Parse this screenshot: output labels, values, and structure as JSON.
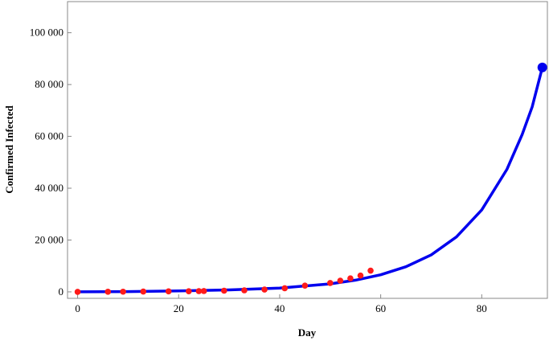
{
  "chart_data": {
    "type": "line",
    "title": "",
    "xlabel": "Day",
    "ylabel": "Confirmed Infected",
    "xlim": [
      -2,
      93
    ],
    "ylim": [
      -2500,
      112000
    ],
    "x_ticks": [
      0,
      20,
      40,
      60,
      80
    ],
    "x_tick_labels": [
      "0",
      "20",
      "40",
      "60",
      "80"
    ],
    "y_ticks": [
      0,
      20000,
      40000,
      60000,
      80000,
      100000
    ],
    "y_tick_labels": [
      "0",
      "20 000",
      "40 000",
      "60 000",
      "80 000",
      "100 000"
    ],
    "grid": false,
    "legend": "none",
    "colors": {
      "curve": "#0000ee",
      "observed": "#ff1a1a",
      "endpoint": "#0000ee",
      "frame": "#888888"
    },
    "series": [
      {
        "kind": "fitted-curve",
        "model": "exponential",
        "x": [
          0,
          10,
          20,
          30,
          40,
          50,
          55,
          60,
          65,
          70,
          75,
          80,
          85,
          88,
          90,
          92
        ],
        "y": [
          0,
          100,
          350,
          750,
          1450,
          3100,
          4500,
          6600,
          9700,
          14300,
          21200,
          31600,
          47300,
          60700,
          71400,
          86600
        ]
      },
      {
        "kind": "observed-points",
        "x": [
          0,
          6,
          9,
          13,
          18,
          22,
          24,
          25,
          29,
          33,
          37,
          41,
          45,
          50,
          52,
          54,
          56,
          58
        ],
        "y": [
          0,
          30,
          60,
          110,
          190,
          240,
          290,
          330,
          450,
          600,
          900,
          1400,
          2400,
          3400,
          4300,
          5200,
          6300,
          8200
        ]
      },
      {
        "kind": "projected-endpoint",
        "x": [
          92
        ],
        "y": [
          86600
        ]
      }
    ]
  }
}
